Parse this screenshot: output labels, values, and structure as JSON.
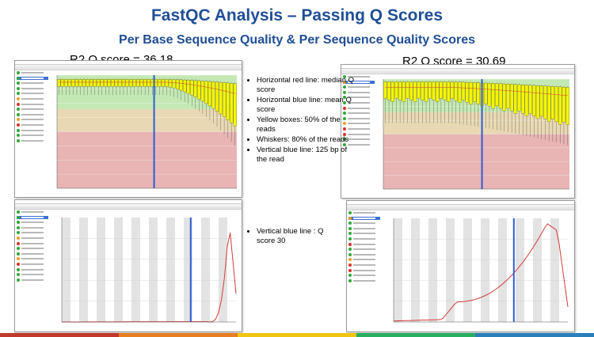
{
  "slide": {
    "title": "FastQC Analysis – Passing Q Scores",
    "subtitle": "Per Base Sequence Quality & Per Sequence Quality Scores"
  },
  "left_label": "R2 Q score = 36.18",
  "right_label": "R2 Q score = 30.69",
  "bullets_top": [
    "Horizontal red line: median Q score",
    "Horizontal blue line: mean Q score",
    "Yellow boxes: 50% of the reads",
    "Whiskers: 80% of the reads",
    "Vertical blue line: 125 bp of the read"
  ],
  "bullets_bottom": [
    "Vertical blue line : Q score 30"
  ],
  "colors": {
    "title": "#1f4e96",
    "zone_good": "#c4e8b4",
    "zone_reasonable": "#e8d9b4",
    "zone_poor": "#e8b4b4",
    "box": "#f5f500",
    "marker_line": "#2e5bd6",
    "curve": "#d43b3b",
    "status_pass": "#2fa836",
    "status_warn": "#f0a020",
    "status_fail": "#d8322c",
    "bottom_band": [
      "#c0392b",
      "#e67e22",
      "#f1c40f",
      "#27ae60",
      "#2980b9"
    ]
  },
  "module_status_left": [
    "pass",
    "pass",
    "pass",
    "pass",
    "pass",
    "warn",
    "fail",
    "pass",
    "pass",
    "warn",
    "fail",
    "pass",
    "pass",
    "pass"
  ],
  "module_status_right": [
    "pass",
    "warn",
    "pass",
    "pass",
    "pass",
    "pass",
    "fail",
    "pass",
    "pass",
    "warn",
    "fail",
    "fail",
    "pass",
    "pass"
  ]
}
